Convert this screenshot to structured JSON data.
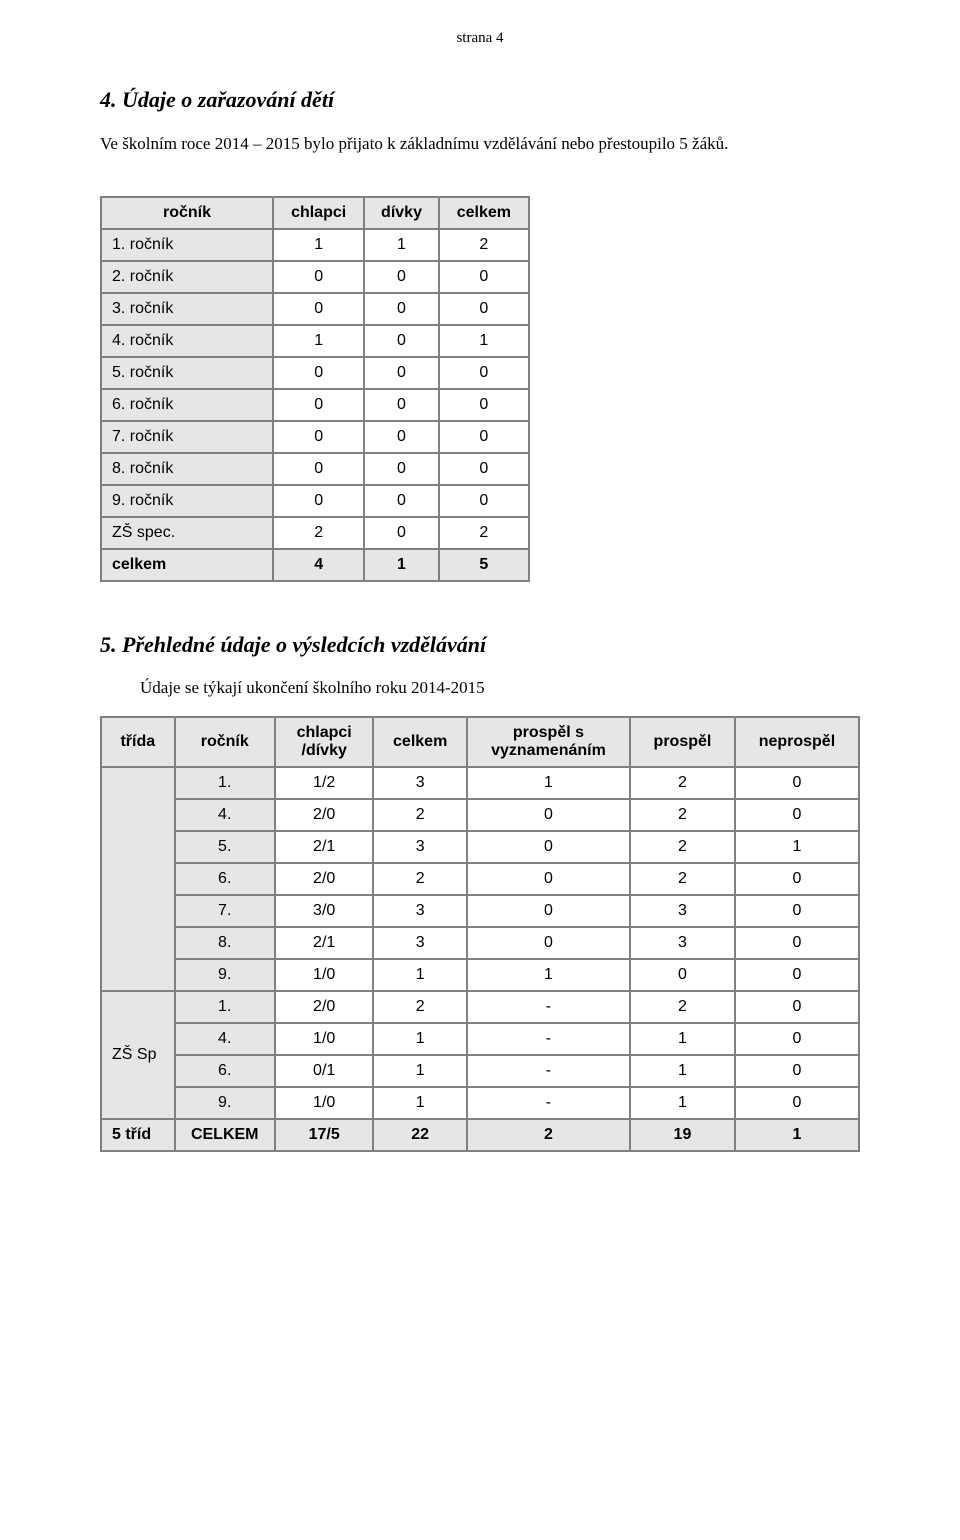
{
  "header": {
    "page_label": "strana 4"
  },
  "section4": {
    "number": "4.",
    "title": "Údaje o zařazování dětí",
    "paragraph": "Ve školním roce 2014 – 2015 bylo přijato k základnímu vzdělávání nebo přestoupilo 5 žáků.",
    "table": {
      "columns": [
        "ročník",
        "chlapci",
        "dívky",
        "celkem"
      ],
      "rows": [
        {
          "label": "1. ročník",
          "vals": [
            "1",
            "1",
            "2"
          ]
        },
        {
          "label": "2. ročník",
          "vals": [
            "0",
            "0",
            "0"
          ]
        },
        {
          "label": "3. ročník",
          "vals": [
            "0",
            "0",
            "0"
          ]
        },
        {
          "label": "4. ročník",
          "vals": [
            "1",
            "0",
            "1"
          ]
        },
        {
          "label": "5. ročník",
          "vals": [
            "0",
            "0",
            "0"
          ]
        },
        {
          "label": "6. ročník",
          "vals": [
            "0",
            "0",
            "0"
          ]
        },
        {
          "label": "7. ročník",
          "vals": [
            "0",
            "0",
            "0"
          ]
        },
        {
          "label": "8. ročník",
          "vals": [
            "0",
            "0",
            "0"
          ]
        },
        {
          "label": "9. ročník",
          "vals": [
            "0",
            "0",
            "0"
          ]
        },
        {
          "label": "ZŠ spec.",
          "vals": [
            "2",
            "0",
            "2"
          ]
        }
      ],
      "total": {
        "label": "celkem",
        "vals": [
          "4",
          "1",
          "5"
        ]
      }
    }
  },
  "section5": {
    "number": "5.",
    "title": "Přehledné údaje o výsledcích vzdělávání",
    "subtitle": "Údaje se týkají ukončení školního roku 2014-2015",
    "table": {
      "columns": [
        "třída",
        "ročník",
        "chlapci /dívky",
        "celkem",
        "prospěl s vyznamenáním",
        "prospěl",
        "neprospěl"
      ],
      "group1": {
        "rowspan": 7,
        "trida": "",
        "rows": [
          {
            "rocnik": "1.",
            "cd": "1/2",
            "celkem": "3",
            "pv": "1",
            "p": "2",
            "np": "0"
          },
          {
            "rocnik": "4.",
            "cd": "2/0",
            "celkem": "2",
            "pv": "0",
            "p": "2",
            "np": "0"
          },
          {
            "rocnik": "5.",
            "cd": "2/1",
            "celkem": "3",
            "pv": "0",
            "p": "2",
            "np": "1"
          },
          {
            "rocnik": "6.",
            "cd": "2/0",
            "celkem": "2",
            "pv": "0",
            "p": "2",
            "np": "0"
          },
          {
            "rocnik": "7.",
            "cd": "3/0",
            "celkem": "3",
            "pv": "0",
            "p": "3",
            "np": "0"
          },
          {
            "rocnik": "8.",
            "cd": "2/1",
            "celkem": "3",
            "pv": "0",
            "p": "3",
            "np": "0"
          },
          {
            "rocnik": "9.",
            "cd": "1/0",
            "celkem": "1",
            "pv": "1",
            "p": "0",
            "np": "0"
          }
        ]
      },
      "group2": {
        "rowspan": 4,
        "trida": "ZŠ Sp",
        "rows": [
          {
            "rocnik": "1.",
            "cd": "2/0",
            "celkem": "2",
            "pv": "-",
            "p": "2",
            "np": "0"
          },
          {
            "rocnik": "4.",
            "cd": "1/0",
            "celkem": "1",
            "pv": "-",
            "p": "1",
            "np": "0"
          },
          {
            "rocnik": "6.",
            "cd": "0/1",
            "celkem": "1",
            "pv": "-",
            "p": "1",
            "np": "0"
          },
          {
            "rocnik": "9.",
            "cd": "1/0",
            "celkem": "1",
            "pv": "-",
            "p": "1",
            "np": "0"
          }
        ]
      },
      "total": {
        "trida": "5 tříd",
        "rocnik": "CELKEM",
        "cd": "17/5",
        "celkem": "22",
        "pv": "2",
        "p": "19",
        "np": "1"
      }
    }
  },
  "styles": {
    "header_bg": "#e6e6e6",
    "border_color": "#808080",
    "text_color": "#000000",
    "page_bg": "#ffffff",
    "heading_fontsize_pt": 16,
    "body_fontsize_pt": 12,
    "table_fontsize_pt": 12
  }
}
